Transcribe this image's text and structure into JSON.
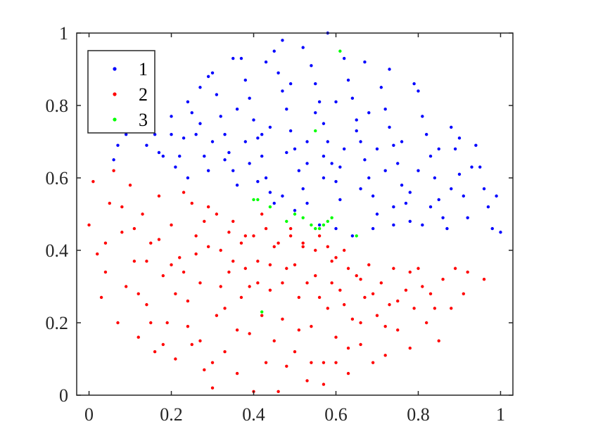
{
  "chart_data": {
    "type": "scatter",
    "title": "",
    "xlabel": "",
    "ylabel": "",
    "xlim": [
      -0.03,
      1.03
    ],
    "ylim": [
      0,
      1
    ],
    "x_ticks": [
      0,
      0.2,
      0.4,
      0.6,
      0.8,
      1
    ],
    "x_tick_labels": [
      "0",
      "0.2",
      "0.4",
      "0.6",
      "0.8",
      "1"
    ],
    "y_ticks": [
      0,
      0.2,
      0.4,
      0.6,
      0.8,
      1
    ],
    "y_tick_labels": [
      "0",
      "0.2",
      "0.4",
      "0.6",
      "0.8",
      "1"
    ],
    "grid": false,
    "legend_position": "top-left",
    "series": [
      {
        "name": "1",
        "color": "#0000ff",
        "points": [
          [
            0.06,
            0.65
          ],
          [
            0.07,
            0.69
          ],
          [
            0.09,
            0.72
          ],
          [
            0.12,
            0.83
          ],
          [
            0.13,
            0.75
          ],
          [
            0.14,
            0.69
          ],
          [
            0.16,
            0.72
          ],
          [
            0.18,
            0.66
          ],
          [
            0.2,
            0.77
          ],
          [
            0.21,
            0.63
          ],
          [
            0.22,
            0.66
          ],
          [
            0.23,
            0.71
          ],
          [
            0.24,
            0.6
          ],
          [
            0.25,
            0.78
          ],
          [
            0.26,
            0.72
          ],
          [
            0.27,
            0.85
          ],
          [
            0.28,
            0.66
          ],
          [
            0.29,
            0.62
          ],
          [
            0.3,
            0.89
          ],
          [
            0.31,
            0.83
          ],
          [
            0.32,
            0.77
          ],
          [
            0.33,
            0.72
          ],
          [
            0.34,
            0.67
          ],
          [
            0.35,
            0.62
          ],
          [
            0.36,
            0.58
          ],
          [
            0.37,
            0.93
          ],
          [
            0.38,
            0.87
          ],
          [
            0.39,
            0.82
          ],
          [
            0.4,
            0.76
          ],
          [
            0.41,
            0.71
          ],
          [
            0.42,
            0.66
          ],
          [
            0.43,
            0.6
          ],
          [
            0.44,
            0.56
          ],
          [
            0.45,
            0.95
          ],
          [
            0.46,
            0.89
          ],
          [
            0.47,
            0.84
          ],
          [
            0.48,
            0.79
          ],
          [
            0.49,
            0.73
          ],
          [
            0.5,
            0.68
          ],
          [
            0.51,
            0.62
          ],
          [
            0.52,
            0.57
          ],
          [
            0.53,
            0.53
          ],
          [
            0.54,
            0.91
          ],
          [
            0.55,
            0.86
          ],
          [
            0.56,
            0.81
          ],
          [
            0.57,
            0.75
          ],
          [
            0.58,
            0.7
          ],
          [
            0.59,
            0.64
          ],
          [
            0.6,
            0.59
          ],
          [
            0.61,
            0.54
          ],
          [
            0.62,
            0.93
          ],
          [
            0.63,
            0.87
          ],
          [
            0.64,
            0.82
          ],
          [
            0.65,
            0.76
          ],
          [
            0.66,
            0.7
          ],
          [
            0.67,
            0.65
          ],
          [
            0.68,
            0.6
          ],
          [
            0.69,
            0.55
          ],
          [
            0.7,
            0.5
          ],
          [
            0.71,
            0.85
          ],
          [
            0.72,
            0.79
          ],
          [
            0.73,
            0.74
          ],
          [
            0.74,
            0.69
          ],
          [
            0.75,
            0.64
          ],
          [
            0.76,
            0.58
          ],
          [
            0.77,
            0.53
          ],
          [
            0.78,
            0.48
          ],
          [
            0.8,
            0.84
          ],
          [
            0.81,
            0.77
          ],
          [
            0.82,
            0.72
          ],
          [
            0.83,
            0.66
          ],
          [
            0.84,
            0.6
          ],
          [
            0.85,
            0.54
          ],
          [
            0.86,
            0.49
          ],
          [
            0.88,
            0.74
          ],
          [
            0.89,
            0.68
          ],
          [
            0.9,
            0.61
          ],
          [
            0.91,
            0.55
          ],
          [
            0.92,
            0.49
          ],
          [
            0.94,
            0.69
          ],
          [
            0.95,
            0.63
          ],
          [
            0.96,
            0.57
          ],
          [
            0.98,
            0.46
          ],
          [
            0.99,
            0.55
          ],
          [
            1.0,
            0.45
          ],
          [
            0.58,
            1.0
          ],
          [
            0.47,
            0.98
          ],
          [
            0.52,
            0.96
          ],
          [
            0.43,
            0.92
          ],
          [
            0.67,
            0.92
          ],
          [
            0.73,
            0.9
          ],
          [
            0.79,
            0.86
          ],
          [
            0.35,
            0.93
          ],
          [
            0.29,
            0.88
          ],
          [
            0.5,
            0.51
          ],
          [
            0.56,
            0.47
          ],
          [
            0.6,
            0.46
          ],
          [
            0.64,
            0.44
          ],
          [
            0.69,
            0.46
          ],
          [
            0.74,
            0.47
          ],
          [
            0.81,
            0.47
          ],
          [
            0.87,
            0.46
          ],
          [
            0.45,
            0.53
          ],
          [
            0.47,
            0.55
          ],
          [
            0.39,
            0.64
          ],
          [
            0.41,
            0.59
          ],
          [
            0.55,
            0.78
          ],
          [
            0.6,
            0.81
          ],
          [
            0.65,
            0.73
          ],
          [
            0.7,
            0.68
          ],
          [
            0.36,
            0.79
          ],
          [
            0.44,
            0.74
          ],
          [
            0.49,
            0.86
          ],
          [
            0.53,
            0.64
          ],
          [
            0.57,
            0.6
          ],
          [
            0.62,
            0.68
          ],
          [
            0.68,
            0.78
          ],
          [
            0.72,
            0.62
          ],
          [
            0.76,
            0.7
          ],
          [
            0.8,
            0.62
          ],
          [
            0.85,
            0.68
          ],
          [
            0.9,
            0.71
          ],
          [
            0.93,
            0.63
          ],
          [
            0.97,
            0.52
          ],
          [
            0.88,
            0.57
          ],
          [
            0.83,
            0.52
          ],
          [
            0.78,
            0.56
          ],
          [
            0.74,
            0.52
          ],
          [
            0.66,
            0.57
          ],
          [
            0.61,
            0.63
          ],
          [
            0.57,
            0.66
          ],
          [
            0.53,
            0.7
          ],
          [
            0.48,
            0.67
          ],
          [
            0.42,
            0.72
          ],
          [
            0.38,
            0.7
          ],
          [
            0.33,
            0.65
          ],
          [
            0.3,
            0.7
          ],
          [
            0.27,
            0.75
          ],
          [
            0.24,
            0.81
          ],
          [
            0.2,
            0.72
          ],
          [
            0.17,
            0.67
          ]
        ]
      },
      {
        "name": "2",
        "color": "#ff0000",
        "points": [
          [
            0.0,
            0.47
          ],
          [
            0.01,
            0.59
          ],
          [
            0.02,
            0.39
          ],
          [
            0.03,
            0.27
          ],
          [
            0.04,
            0.34
          ],
          [
            0.05,
            0.53
          ],
          [
            0.06,
            0.62
          ],
          [
            0.07,
            0.2
          ],
          [
            0.08,
            0.45
          ],
          [
            0.09,
            0.3
          ],
          [
            0.1,
            0.58
          ],
          [
            0.11,
            0.37
          ],
          [
            0.12,
            0.16
          ],
          [
            0.13,
            0.5
          ],
          [
            0.14,
            0.25
          ],
          [
            0.15,
            0.42
          ],
          [
            0.16,
            0.12
          ],
          [
            0.17,
            0.55
          ],
          [
            0.18,
            0.33
          ],
          [
            0.19,
            0.2
          ],
          [
            0.2,
            0.47
          ],
          [
            0.21,
            0.1
          ],
          [
            0.22,
            0.38
          ],
          [
            0.23,
            0.56
          ],
          [
            0.24,
            0.26
          ],
          [
            0.25,
            0.14
          ],
          [
            0.26,
            0.44
          ],
          [
            0.27,
            0.31
          ],
          [
            0.28,
            0.07
          ],
          [
            0.29,
            0.52
          ],
          [
            0.3,
            0.02
          ],
          [
            0.31,
            0.22
          ],
          [
            0.32,
            0.4
          ],
          [
            0.33,
            0.12
          ],
          [
            0.34,
            0.34
          ],
          [
            0.35,
            0.48
          ],
          [
            0.36,
            0.06
          ],
          [
            0.37,
            0.27
          ],
          [
            0.38,
            0.44
          ],
          [
            0.39,
            0.17
          ],
          [
            0.4,
            0.01
          ],
          [
            0.41,
            0.37
          ],
          [
            0.42,
            0.5
          ],
          [
            0.43,
            0.09
          ],
          [
            0.44,
            0.29
          ],
          [
            0.45,
            0.41
          ],
          [
            0.46,
            0.01
          ],
          [
            0.47,
            0.21
          ],
          [
            0.48,
            0.35
          ],
          [
            0.49,
            0.46
          ],
          [
            0.5,
            0.12
          ],
          [
            0.51,
            0.27
          ],
          [
            0.52,
            0.41
          ],
          [
            0.53,
            0.04
          ],
          [
            0.54,
            0.19
          ],
          [
            0.55,
            0.33
          ],
          [
            0.56,
            0.44
          ],
          [
            0.57,
            0.09
          ],
          [
            0.58,
            0.24
          ],
          [
            0.59,
            0.37
          ],
          [
            0.6,
            0.16
          ],
          [
            0.61,
            0.29
          ],
          [
            0.62,
            0.4
          ],
          [
            0.63,
            0.06
          ],
          [
            0.64,
            0.21
          ],
          [
            0.65,
            0.33
          ],
          [
            0.66,
            0.14
          ],
          [
            0.67,
            0.27
          ],
          [
            0.68,
            0.36
          ],
          [
            0.69,
            0.09
          ],
          [
            0.7,
            0.22
          ],
          [
            0.71,
            0.31
          ],
          [
            0.72,
            0.11
          ],
          [
            0.73,
            0.25
          ],
          [
            0.74,
            0.35
          ],
          [
            0.75,
            0.18
          ],
          [
            0.77,
            0.29
          ],
          [
            0.78,
            0.13
          ],
          [
            0.79,
            0.24
          ],
          [
            0.8,
            0.35
          ],
          [
            0.82,
            0.2
          ],
          [
            0.83,
            0.28
          ],
          [
            0.85,
            0.15
          ],
          [
            0.86,
            0.32
          ],
          [
            0.88,
            0.24
          ],
          [
            0.89,
            0.35
          ],
          [
            0.91,
            0.28
          ],
          [
            0.92,
            0.34
          ],
          [
            0.96,
            0.32
          ],
          [
            0.25,
            0.53
          ],
          [
            0.28,
            0.48
          ],
          [
            0.31,
            0.5
          ],
          [
            0.34,
            0.45
          ],
          [
            0.37,
            0.42
          ],
          [
            0.4,
            0.44
          ],
          [
            0.43,
            0.46
          ],
          [
            0.46,
            0.42
          ],
          [
            0.49,
            0.44
          ],
          [
            0.52,
            0.42
          ],
          [
            0.55,
            0.4
          ],
          [
            0.58,
            0.41
          ],
          [
            0.6,
            0.38
          ],
          [
            0.63,
            0.35
          ],
          [
            0.66,
            0.32
          ],
          [
            0.12,
            0.28
          ],
          [
            0.15,
            0.2
          ],
          [
            0.18,
            0.14
          ],
          [
            0.21,
            0.28
          ],
          [
            0.24,
            0.19
          ],
          [
            0.27,
            0.15
          ],
          [
            0.3,
            0.09
          ],
          [
            0.33,
            0.24
          ],
          [
            0.36,
            0.18
          ],
          [
            0.39,
            0.3
          ],
          [
            0.42,
            0.22
          ],
          [
            0.45,
            0.15
          ],
          [
            0.48,
            0.08
          ],
          [
            0.51,
            0.18
          ],
          [
            0.54,
            0.09
          ],
          [
            0.57,
            0.03
          ],
          [
            0.6,
            0.09
          ],
          [
            0.63,
            0.13
          ],
          [
            0.66,
            0.2
          ],
          [
            0.69,
            0.28
          ],
          [
            0.72,
            0.19
          ],
          [
            0.75,
            0.26
          ],
          [
            0.78,
            0.34
          ],
          [
            0.81,
            0.3
          ],
          [
            0.84,
            0.24
          ],
          [
            0.04,
            0.42
          ],
          [
            0.08,
            0.52
          ],
          [
            0.11,
            0.46
          ],
          [
            0.14,
            0.37
          ],
          [
            0.17,
            0.43
          ],
          [
            0.2,
            0.36
          ],
          [
            0.23,
            0.34
          ],
          [
            0.26,
            0.39
          ],
          [
            0.29,
            0.41
          ],
          [
            0.32,
            0.3
          ],
          [
            0.35,
            0.37
          ],
          [
            0.38,
            0.35
          ],
          [
            0.41,
            0.31
          ],
          [
            0.44,
            0.36
          ],
          [
            0.47,
            0.31
          ],
          [
            0.5,
            0.36
          ],
          [
            0.53,
            0.31
          ],
          [
            0.56,
            0.27
          ],
          [
            0.59,
            0.31
          ],
          [
            0.62,
            0.25
          ]
        ]
      },
      {
        "name": "3",
        "color": "#00ff00",
        "points": [
          [
            0.61,
            0.95
          ],
          [
            0.55,
            0.73
          ],
          [
            0.4,
            0.54
          ],
          [
            0.41,
            0.54
          ],
          [
            0.44,
            0.52
          ],
          [
            0.48,
            0.48
          ],
          [
            0.5,
            0.5
          ],
          [
            0.52,
            0.49
          ],
          [
            0.54,
            0.47
          ],
          [
            0.55,
            0.46
          ],
          [
            0.56,
            0.46
          ],
          [
            0.57,
            0.47
          ],
          [
            0.58,
            0.48
          ],
          [
            0.59,
            0.49
          ],
          [
            0.65,
            0.44
          ],
          [
            0.42,
            0.23
          ]
        ]
      }
    ]
  }
}
